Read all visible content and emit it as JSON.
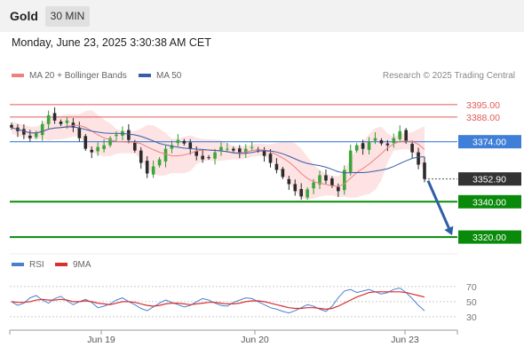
{
  "header": {
    "symbol": "Gold",
    "timeframe": "30 MIN",
    "datetime": "Monday, June 23, 2025 3:30:38 AM CET"
  },
  "legend": {
    "ma20_label": "MA 20 + Bollinger Bands",
    "ma50_label": "MA 50",
    "credit": "Research © 2025 Trading Central",
    "rsi_label": "RSI",
    "rsi_ma_label": "9MA"
  },
  "colors": {
    "ma20": "#f08080",
    "ma50": "#3a5da8",
    "bollinger_fill": "#fde3e3",
    "resistance": "#e05a5a",
    "pivot": "#3f7fd8",
    "support": "#0a8a0a",
    "forecast_arrow": "#2e5fa6",
    "rsi_line": "#4a7fd0",
    "rsi_ma": "#d93030",
    "current_price_box": "#333333"
  },
  "chart_data": [
    {
      "type": "candlestick",
      "title": "Gold",
      "timeframe": "30 MIN",
      "x_labels": [
        "Jun 19",
        "Jun 20",
        "Jun 23"
      ],
      "y_range": [
        3312,
        3404
      ],
      "levels": [
        {
          "name": "resistance",
          "value": 3395.0,
          "label": "3395.00"
        },
        {
          "name": "resistance",
          "value": 3388.0,
          "label": "3388.00"
        },
        {
          "name": "pivot",
          "value": 3374.0,
          "label": "3374.00"
        },
        {
          "name": "current",
          "value": 3352.9,
          "label": "3352.90"
        },
        {
          "name": "support",
          "value": 3340.0,
          "label": "3340.00"
        },
        {
          "name": "support",
          "value": 3320.0,
          "label": "3320.00"
        }
      ],
      "forecast": {
        "from": 3352.9,
        "to": 3320.0,
        "direction": "down"
      },
      "series": [
        {
          "name": "MA 20 + Bollinger Bands"
        },
        {
          "name": "MA 50"
        }
      ],
      "close_path": [
        3382,
        3380,
        3378,
        3376,
        3379,
        3384,
        3389,
        3386,
        3384,
        3386,
        3382,
        3376,
        3370,
        3368,
        3371,
        3372,
        3376,
        3378,
        3380,
        3375,
        3369,
        3362,
        3356,
        3360,
        3364,
        3370,
        3372,
        3375,
        3373,
        3370,
        3366,
        3364,
        3365,
        3368,
        3371,
        3370,
        3369,
        3368,
        3370,
        3371,
        3369,
        3366,
        3362,
        3358,
        3354,
        3350,
        3346,
        3343,
        3347,
        3351,
        3355,
        3352,
        3349,
        3346,
        3358,
        3369,
        3372,
        3370,
        3374,
        3376,
        3373,
        3372,
        3376,
        3380,
        3374,
        3368,
        3361,
        3352.9
      ]
    },
    {
      "type": "line",
      "title": "RSI",
      "y_ticks": [
        70,
        50,
        30
      ],
      "y_range": [
        24,
        78
      ],
      "series": [
        {
          "name": "RSI",
          "values": [
            50,
            45,
            48,
            55,
            58,
            52,
            48,
            54,
            57,
            51,
            46,
            50,
            53,
            49,
            42,
            44,
            47,
            52,
            55,
            50,
            46,
            41,
            38,
            43,
            48,
            52,
            49,
            46,
            43,
            45,
            50,
            54,
            52,
            48,
            45,
            44,
            49,
            52,
            55,
            54,
            50,
            46,
            42,
            40,
            37,
            35,
            38,
            42,
            46,
            44,
            40,
            37,
            44,
            55,
            64,
            66,
            62,
            64,
            66,
            63,
            60,
            62,
            66,
            68,
            62,
            54,
            45,
            38
          ]
        },
        {
          "name": "9MA",
          "values": [
            50,
            49,
            49,
            50,
            52,
            53,
            52,
            52,
            53,
            52,
            50,
            50,
            51,
            50,
            48,
            47,
            46,
            48,
            50,
            50,
            49,
            47,
            45,
            44,
            45,
            47,
            48,
            48,
            47,
            46,
            47,
            48,
            49,
            49,
            48,
            47,
            47,
            48,
            50,
            51,
            51,
            50,
            48,
            46,
            44,
            42,
            41,
            41,
            42,
            42,
            41,
            40,
            41,
            44,
            48,
            52,
            56,
            59,
            62,
            63,
            63,
            63,
            63,
            63,
            62,
            60,
            58,
            56
          ]
        }
      ]
    }
  ]
}
